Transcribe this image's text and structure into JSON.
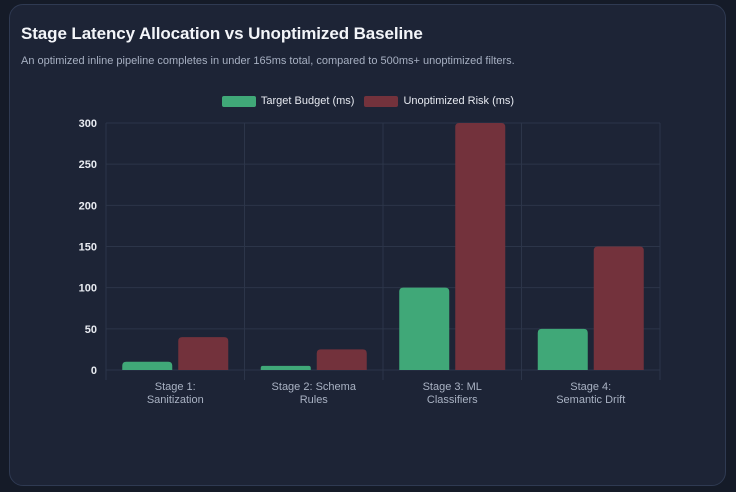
{
  "card": {
    "title": "Stage Latency Allocation vs Unoptimized Baseline",
    "subtitle": "An optimized inline pipeline completes in under 165ms total, compared to 500ms+ unoptimized filters."
  },
  "chart_data": {
    "type": "bar",
    "title": "",
    "xlabel": "",
    "ylabel": "",
    "categories": [
      [
        "Stage 1:",
        "Sanitization"
      ],
      [
        "Stage 2: Schema",
        "Rules"
      ],
      [
        "Stage 3: ML",
        "Classifiers"
      ],
      [
        "Stage 4:",
        "Semantic Drift"
      ]
    ],
    "series": [
      {
        "name": "Target Budget (ms)",
        "values": [
          10,
          5,
          100,
          50
        ],
        "color": "#40a878"
      },
      {
        "name": "Unoptimized Risk (ms)",
        "values": [
          40,
          25,
          300,
          150
        ],
        "color": "#73323c"
      }
    ],
    "ylim": [
      0,
      300
    ],
    "yticks": [
      0,
      50,
      100,
      150,
      200,
      250,
      300
    ],
    "grid": true,
    "legend_position": "top-center"
  }
}
